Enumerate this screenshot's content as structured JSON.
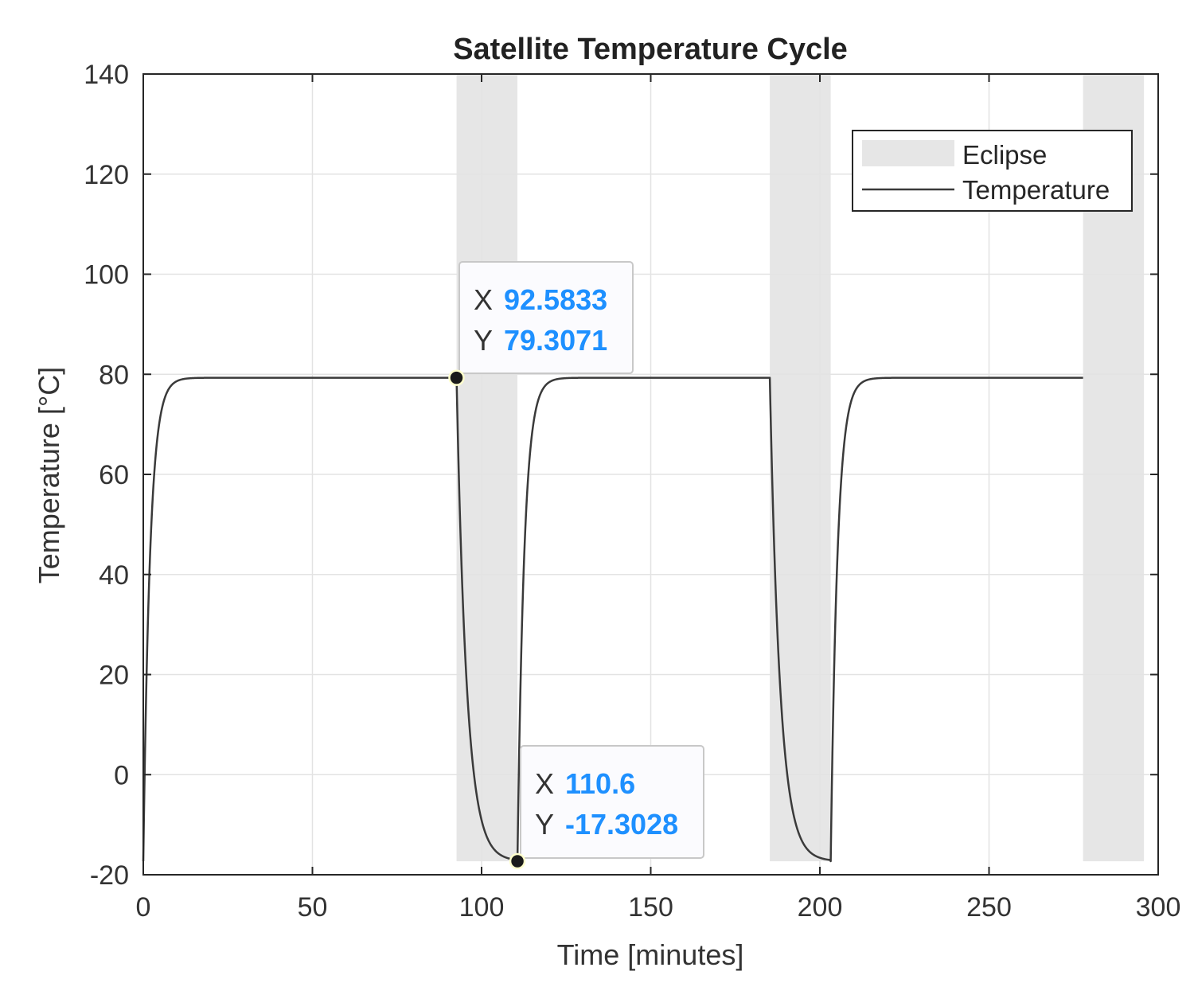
{
  "chart_data": {
    "type": "line",
    "title": "Satellite Temperature Cycle",
    "xlabel": "Time [minutes]",
    "ylabel": "Temperature [°C]",
    "xlim": [
      0,
      300
    ],
    "ylim": [
      -20,
      140
    ],
    "xticks": [
      0,
      50,
      100,
      150,
      200,
      250,
      300
    ],
    "yticks": [
      -20,
      0,
      20,
      40,
      60,
      80,
      100,
      120,
      140
    ],
    "grid": true,
    "legend": {
      "position": "top-right",
      "entries": [
        "Eclipse",
        "Temperature"
      ]
    },
    "eclipse_intervals": [
      [
        92.6,
        110.6
      ],
      [
        185.2,
        203.2
      ],
      [
        277.8,
        295.8
      ]
    ],
    "eclipse_band_ylim": [
      -17.3,
      140
    ],
    "series": [
      {
        "name": "Temperature",
        "model": {
          "T_sun": 79.3071,
          "T_eclipse": -17.3028,
          "initial": -17.3,
          "heating_time_constant_min": 2.0,
          "cooling_time_constant_min": 3.0,
          "final_x": 277.8
        }
      }
    ],
    "data_tips": [
      {
        "x_label": "X",
        "y_label": "Y",
        "x": 92.5833,
        "y": 79.3071,
        "x_text": "92.5833",
        "y_text": "79.3071"
      },
      {
        "x_label": "X",
        "y_label": "Y",
        "x": 110.6,
        "y": -17.3028,
        "x_text": "110.6",
        "y_text": "-17.3028"
      }
    ]
  },
  "colors": {
    "eclipse": "#e6e6e6",
    "line": "#3a3a3a",
    "grid": "#e3e3e3",
    "axis": "#262626",
    "tip_value": "#1e90ff",
    "tip_bg": "#fbfbfe",
    "tip_border": "#c8c8c8",
    "marker_fill": "#1a1a1a",
    "marker_ring": "#ffffcc"
  }
}
